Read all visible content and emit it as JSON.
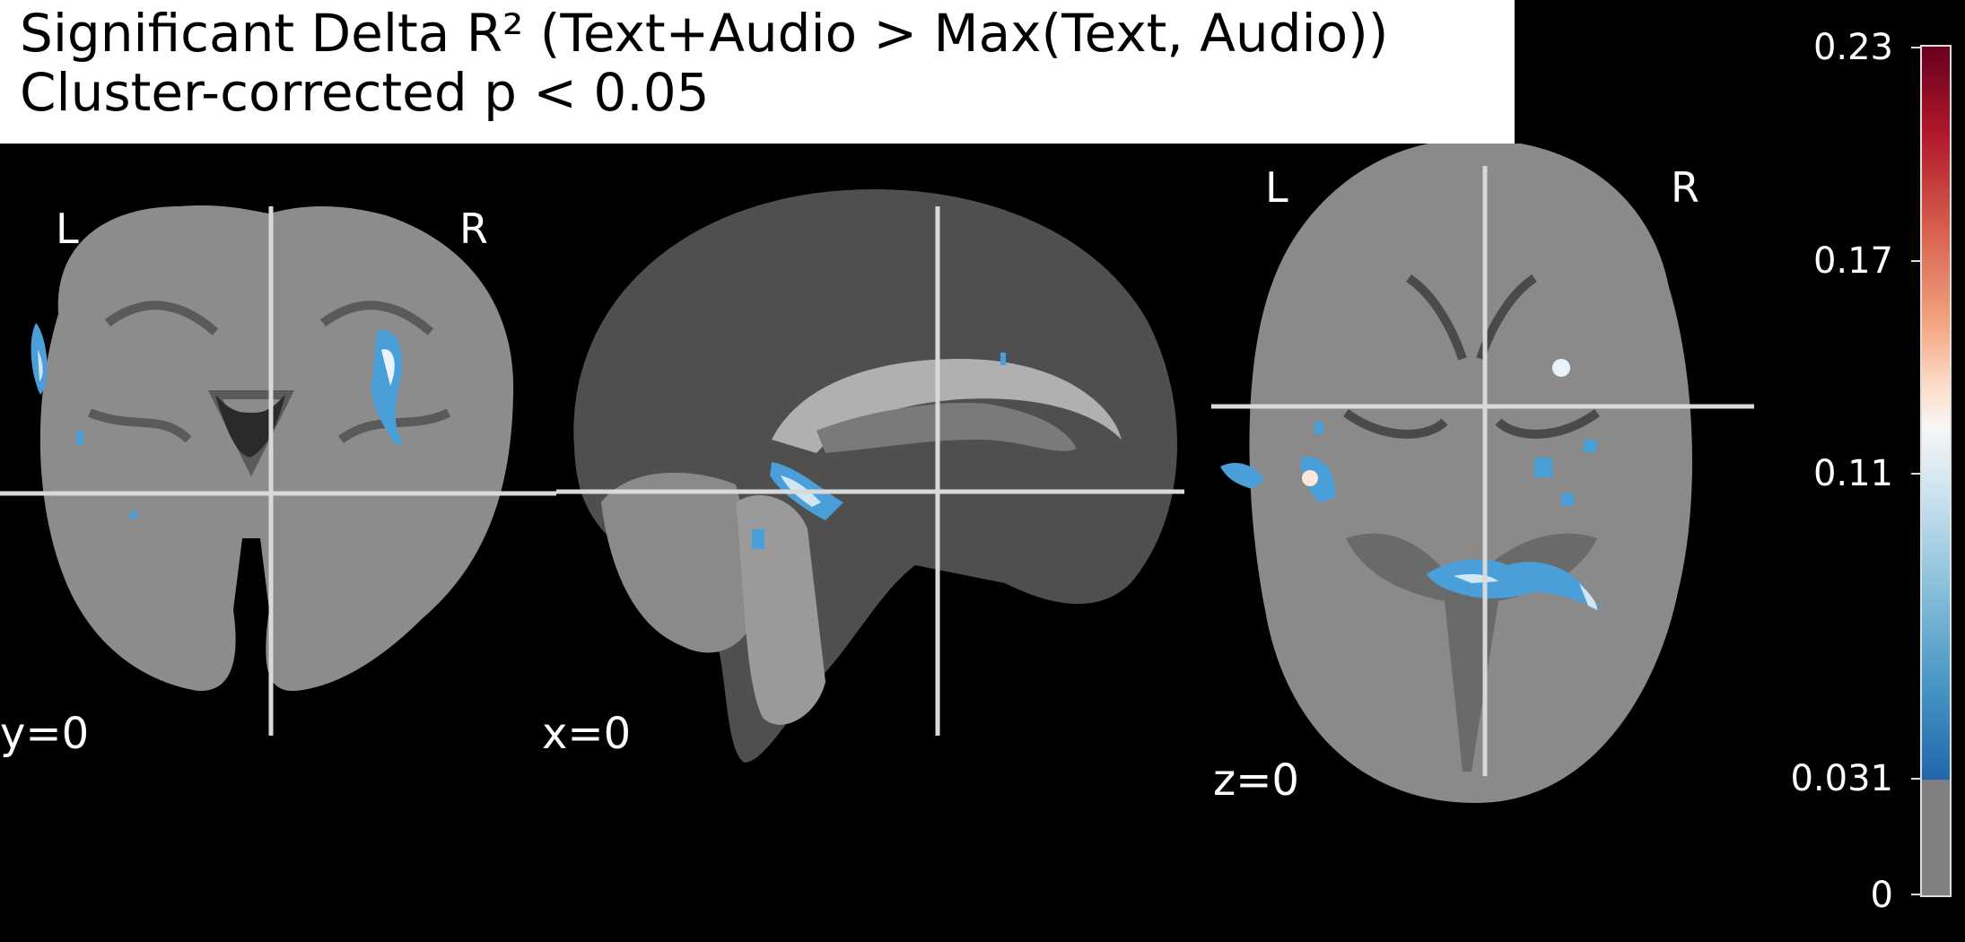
{
  "title": {
    "line1": "Significant Delta R² (Text+Audio > Max(Text, Audio))",
    "line2": "Cluster-corrected p < 0.05"
  },
  "orientation": {
    "left": "L",
    "right": "R"
  },
  "cuts": {
    "coronal": "y=0",
    "sagittal": "x=0",
    "axial": "z=0"
  },
  "colorbar": {
    "ticks": [
      "0.23",
      "0.17",
      "0.11",
      "0.031",
      "0"
    ],
    "threshold": 0.031,
    "max": 0.23,
    "colormap_stops": [
      "#67001f",
      "#d6604d",
      "#f4a582",
      "#f7f7f7",
      "#92c5de",
      "#4393c3",
      "#2166ac"
    ],
    "below_threshold_color": "#808080"
  },
  "colors": {
    "background": "#000000",
    "crosshair": "#d9d9d9",
    "overlay_blue": "#4a9fd8",
    "overlay_light": "#cfe6f5"
  }
}
